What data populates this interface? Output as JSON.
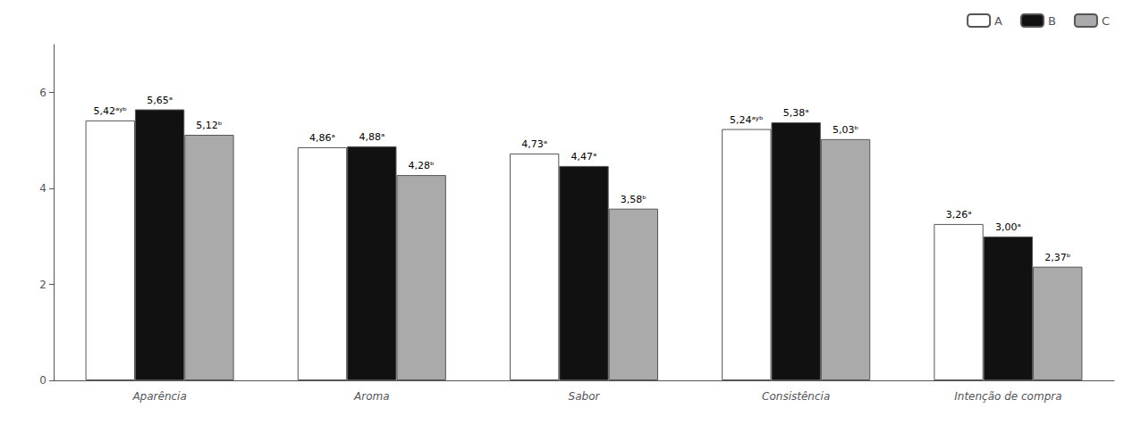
{
  "chart_data": {
    "type": "bar",
    "categories": [
      "Aparência",
      "Aroma",
      "Sabor",
      "Consistência",
      "Intenção de compra"
    ],
    "series": [
      {
        "name": "A",
        "color": "#ffffff",
        "values": [
          5.42,
          4.86,
          4.73,
          5.24,
          3.26
        ],
        "value_labels": [
          "5,42ᵃʸᵇ",
          "4,86ᵃ",
          "4,73ᵃ",
          "5,24ᵃʸᵇ",
          "3,26ᵃ"
        ]
      },
      {
        "name": "B",
        "color": "#111111",
        "values": [
          5.65,
          4.88,
          4.47,
          5.38,
          3.0
        ],
        "value_labels": [
          "5,65ᵃ",
          "4,88ᵃ",
          "4,47ᵃ",
          "5,38ᵃ",
          "3,00ᵃ"
        ]
      },
      {
        "name": "C",
        "color": "#aaaaaa",
        "values": [
          5.12,
          4.28,
          3.58,
          5.03,
          2.37
        ],
        "value_labels": [
          "5,12ᵇ",
          "4,28ᵇ",
          "3,58ᵇ",
          "5,03ᵇ",
          "2,37ᵇ"
        ]
      }
    ],
    "ylim": [
      0,
      7
    ],
    "yticks": [
      0,
      2,
      4,
      6
    ],
    "grid": false,
    "legend": "upper right",
    "data_labels": true
  }
}
